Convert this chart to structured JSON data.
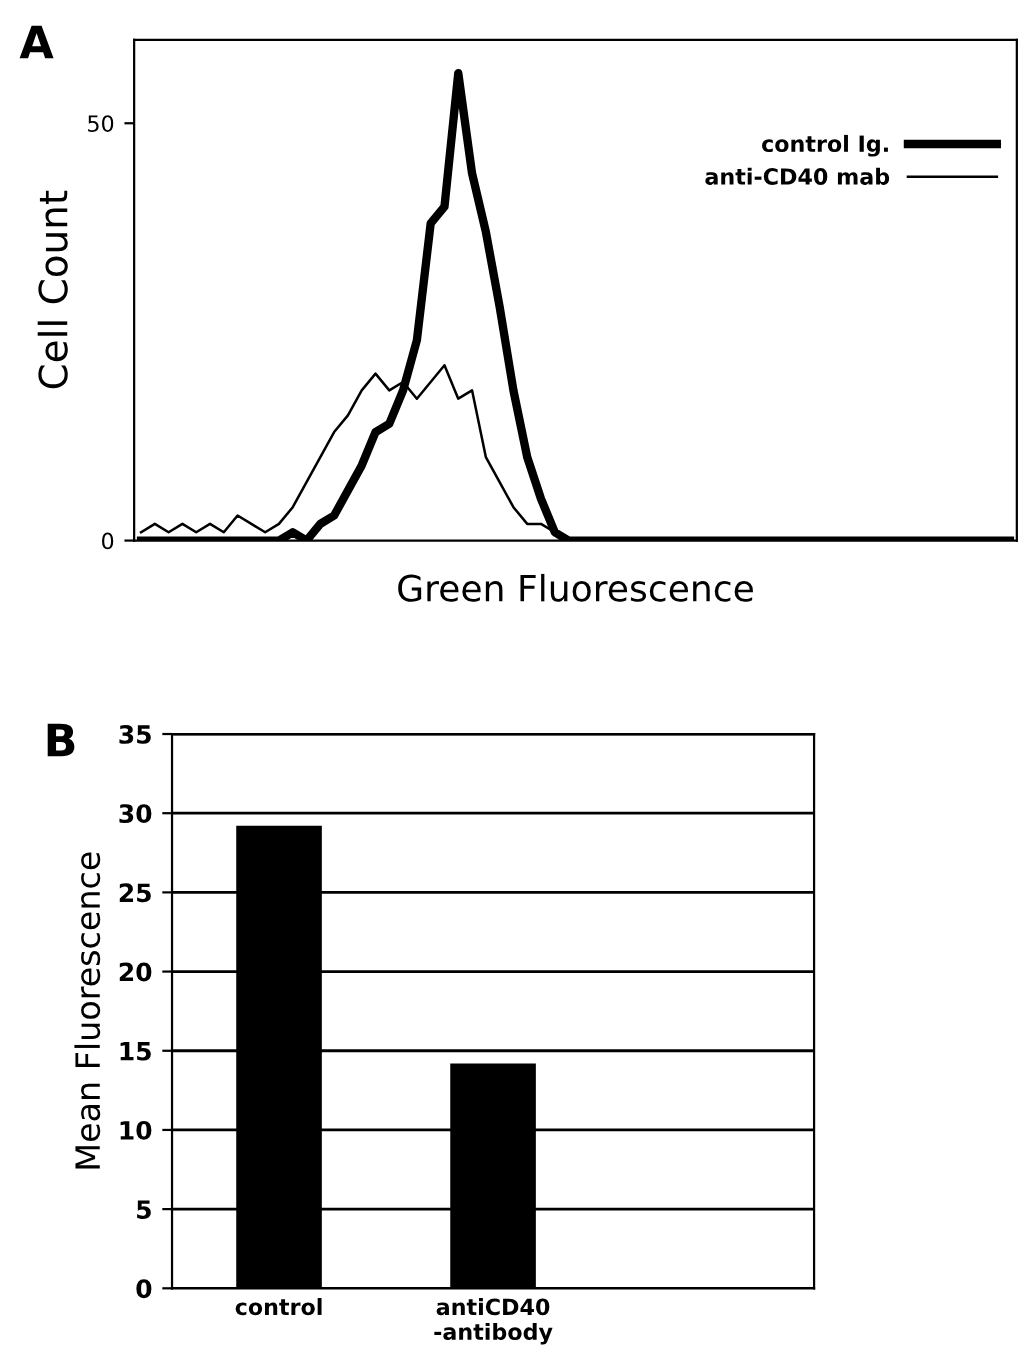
{
  "chart_data": [
    {
      "type": "line",
      "title": "A",
      "xlabel": "Green Fluorescence",
      "ylabel": "Cell Count",
      "categories": [
        null,
        null,
        null,
        null,
        null,
        null,
        null,
        null,
        null,
        null,
        null,
        null,
        null,
        null,
        null,
        null,
        null,
        null,
        null,
        null,
        null,
        null,
        null,
        null,
        null,
        null,
        null,
        null,
        null,
        null,
        null,
        null,
        null,
        null,
        null,
        null,
        null,
        null,
        null,
        null,
        null,
        null,
        null,
        null,
        null,
        null,
        null,
        null,
        null,
        null,
        null,
        null,
        null,
        null,
        null,
        null,
        null,
        null,
        null,
        null,
        null,
        null,
        null,
        null
      ],
      "series": [
        {
          "name": "control Ig.",
          "color": "#000000",
          "values": [
            0,
            0,
            0,
            0,
            0,
            0,
            0,
            0,
            0,
            0,
            0,
            1,
            0,
            2,
            3,
            6,
            9,
            13,
            14,
            18,
            24,
            38,
            40,
            56,
            44,
            37,
            28,
            18,
            10,
            5,
            1,
            0,
            0,
            0,
            0,
            0,
            0,
            0,
            0,
            0,
            0,
            0,
            0,
            0,
            0,
            0,
            0,
            0,
            0,
            0,
            0,
            0,
            0,
            0,
            0,
            0,
            0,
            0,
            0,
            0,
            0,
            0,
            0,
            0
          ]
        },
        {
          "name": "anti-CD40 mab",
          "color": "#000000",
          "values": [
            1,
            2,
            1,
            2,
            1,
            2,
            1,
            3,
            2,
            1,
            2,
            4,
            7,
            10,
            13,
            15,
            18,
            20,
            18,
            19,
            17,
            19,
            21,
            17,
            18,
            10,
            7,
            4,
            2,
            2,
            1,
            0,
            0,
            0,
            0,
            0,
            0,
            0,
            0,
            0,
            0,
            0,
            0,
            0,
            0,
            0,
            0,
            0,
            0,
            0,
            0,
            0,
            0,
            0,
            0,
            0,
            0,
            0,
            0,
            0,
            0,
            0,
            0,
            0
          ]
        }
      ],
      "ylim": [
        0,
        60
      ],
      "yticks": [
        0,
        50
      ],
      "legend": "top right",
      "grid": false
    },
    {
      "type": "bar",
      "title": "B",
      "ylabel": "Mean Fluorescence",
      "categories": [
        "control",
        "antiCD40\n-antibody",
        null
      ],
      "values": [
        29.2,
        14.2,
        null
      ],
      "color": "#000000",
      "ylim": [
        0,
        35
      ],
      "yticks": [
        0,
        5,
        10,
        15,
        20,
        25,
        30,
        35
      ],
      "grid": "y"
    }
  ]
}
